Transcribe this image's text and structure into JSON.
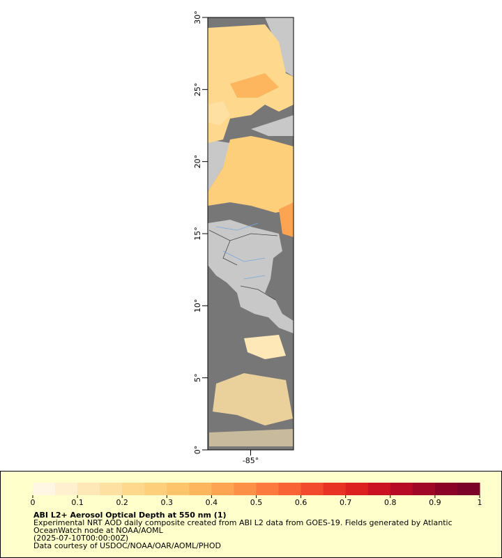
{
  "map": {
    "xlim": [
      -88,
      -82
    ],
    "ylim": [
      0,
      30
    ],
    "xticks": [
      {
        "value": -85,
        "label": "-85°"
      }
    ],
    "yticks": [
      {
        "value": 0,
        "label": "0°"
      },
      {
        "value": 5,
        "label": "5°"
      },
      {
        "value": 10,
        "label": "10°"
      },
      {
        "value": 15,
        "label": "15°"
      },
      {
        "value": 20,
        "label": "20°"
      },
      {
        "value": 25,
        "label": "25°"
      },
      {
        "value": 30,
        "label": "30°"
      }
    ]
  },
  "colorbar": {
    "range": [
      0,
      1
    ],
    "ticks": [
      0,
      0.1,
      0.2,
      0.3,
      0.4,
      0.5,
      0.6,
      0.7,
      0.8,
      0.9,
      1
    ],
    "colors": [
      "#fff7e4",
      "#fff0cf",
      "#fee8b8",
      "#fee0a2",
      "#fed88c",
      "#fecf7a",
      "#fdc46b",
      "#fdb65e",
      "#fda452",
      "#fc9047",
      "#fc7a3d",
      "#f96234",
      "#f14a2c",
      "#e83324",
      "#dc2020",
      "#cb1223",
      "#b60a26",
      "#a00626",
      "#8a0327",
      "#7a0127"
    ]
  },
  "legend": {
    "title": "ABI L2+ Aerosol Optical Depth at 550 nm (1)",
    "lines": [
      "Experimental NRT AOD daily composite created from ABI L2 data from GOES-19. Fields generated by Atlantic",
      "OceanWatch node at NOAA/AOML",
      "(2025-07-10T00:00:00Z)",
      "Data courtesy of USDOC/NOAA/OAR/AOML/PHOD"
    ]
  }
}
